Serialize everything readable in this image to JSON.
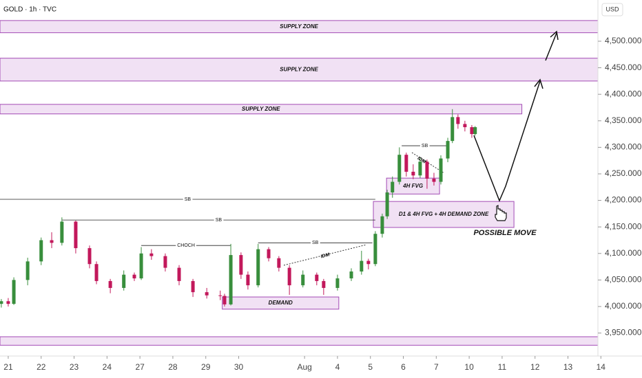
{
  "chart_data": {
    "type": "candlestick",
    "title": "GOLD · 1h · TVC",
    "currency": "USD",
    "up_color": "#388e3c",
    "down_color": "#c2185b",
    "x": [
      -0.21,
      0,
      0.17,
      0.59,
      1.0,
      1.32,
      1.63,
      2.05,
      2.47,
      2.68,
      3.1,
      3.51,
      3.83,
      4.04,
      4.35,
      4.77,
      5.19,
      5.61,
      6.03,
      6.44,
      6.57,
      6.76,
      7.07,
      7.28,
      7.59,
      7.91,
      8.22,
      8.54,
      8.95,
      9.37,
      9.58,
      10.0,
      10.42,
      10.73,
      10.94,
      11.15,
      11.36,
      11.51,
      11.67,
      11.88,
      12.09,
      12.3,
      12.51,
      12.72,
      12.93,
      13.14,
      13.35,
      13.49,
      13.66,
      13.87,
      14.08,
      14.18
    ],
    "open": [
      4005,
      4010,
      4005,
      4050,
      4085,
      4125,
      4120,
      4160,
      4110,
      4080,
      4048,
      4035,
      4060,
      4053,
      4100,
      4095,
      4073,
      4048,
      4027,
      4021,
      4020,
      4004,
      4097,
      4060,
      4040,
      4108,
      4091,
      4073,
      4040,
      4060,
      4048,
      4035,
      4053,
      4066,
      4086,
      4080,
      4137,
      4170,
      4215,
      4235,
      4286,
      4254,
      4247,
      4273,
      4241,
      4235,
      4279,
      4312,
      4357,
      4344,
      4338,
      4325
    ],
    "high": [
      4014,
      4016,
      4055,
      4092,
      4130,
      4140,
      4168,
      4162,
      4115,
      4085,
      4052,
      4068,
      4064,
      4112,
      4108,
      4100,
      4078,
      4052,
      4035,
      4030,
      4024,
      4118,
      4102,
      4066,
      4118,
      4112,
      4095,
      4078,
      4068,
      4064,
      4052,
      4060,
      4072,
      4105,
      4090,
      4142,
      4175,
      4220,
      4245,
      4300,
      4290,
      4268,
      4280,
      4277,
      4252,
      4285,
      4318,
      4372,
      4362,
      4350,
      4342,
      4340
    ],
    "low": [
      3998,
      4000,
      4003,
      4040,
      4078,
      4110,
      4115,
      4100,
      4072,
      4042,
      4025,
      4030,
      4048,
      4050,
      4088,
      4066,
      4040,
      4018,
      4015,
      4012,
      4000,
      4002,
      4052,
      4032,
      4036,
      4085,
      4066,
      4022,
      4036,
      4040,
      4022,
      4030,
      4048,
      4060,
      4070,
      4076,
      4130,
      4165,
      4205,
      4230,
      4245,
      4240,
      4242,
      4222,
      4228,
      4230,
      4272,
      4308,
      4335,
      4330,
      4318,
      4322
    ],
    "close": [
      4010,
      4005,
      4050,
      4085,
      4125,
      4120,
      4160,
      4110,
      4080,
      4048,
      4035,
      4060,
      4053,
      4100,
      4095,
      4073,
      4048,
      4027,
      4021,
      4020,
      4004,
      4097,
      4060,
      4040,
      4108,
      4091,
      4073,
      4040,
      4060,
      4048,
      4035,
      4053,
      4066,
      4086,
      4080,
      4137,
      4170,
      4215,
      4235,
      4286,
      4254,
      4247,
      4273,
      4241,
      4235,
      4279,
      4312,
      4357,
      4344,
      4338,
      4325,
      4338
    ],
    "xlim": [
      -0.25,
      17.91
    ],
    "ylim": [
      3906.7,
      4577.7
    ],
    "xticks": [
      {
        "value": 0,
        "label": "21"
      },
      {
        "value": 1,
        "label": "22"
      },
      {
        "value": 2,
        "label": "23"
      },
      {
        "value": 3,
        "label": "24"
      },
      {
        "value": 4,
        "label": "27"
      },
      {
        "value": 5,
        "label": "28"
      },
      {
        "value": 6,
        "label": "29"
      },
      {
        "value": 7,
        "label": "30"
      },
      {
        "value": 9,
        "label": "Aug"
      },
      {
        "value": 10,
        "label": "4"
      },
      {
        "value": 11,
        "label": "5"
      },
      {
        "value": 12,
        "label": "6"
      },
      {
        "value": 13,
        "label": "7"
      },
      {
        "value": 14,
        "label": "10"
      },
      {
        "value": 15,
        "label": "11"
      },
      {
        "value": 16,
        "label": "12"
      },
      {
        "value": 17,
        "label": "13"
      },
      {
        "value": 18,
        "label": "14"
      }
    ],
    "yticks": [
      {
        "value": 3950,
        "label": "3,950.000"
      },
      {
        "value": 4000,
        "label": "4,000.000"
      },
      {
        "value": 4050,
        "label": "4,050.000"
      },
      {
        "value": 4100,
        "label": "4,100.000"
      },
      {
        "value": 4150,
        "label": "4,150.000"
      },
      {
        "value": 4200,
        "label": "4,200.000"
      },
      {
        "value": 4250,
        "label": "4,250.000"
      },
      {
        "value": 4300,
        "label": "4,300.000"
      },
      {
        "value": 4350,
        "label": "4,350.000"
      },
      {
        "value": 4400,
        "label": "4,400.000"
      },
      {
        "value": 4450,
        "label": "4,450.000"
      },
      {
        "value": 4500,
        "label": "4,500.000"
      }
    ],
    "zones": [
      {
        "label": "SUPPLY ZONE",
        "top": 4539,
        "bottom": 4516
      },
      {
        "label": "SUPPLY ZONE",
        "top": 4468,
        "bottom": 4425
      },
      {
        "label": "SUPPLY ZONE",
        "top": 4381,
        "bottom": 4363,
        "x": [
          -0.25,
          15.6
        ]
      },
      {
        "label": "DEMAND",
        "top": 4018,
        "bottom": 3995,
        "x": [
          6.5,
          10.04
        ]
      },
      {
        "label": "4H FVG",
        "top": 4242,
        "bottom": 4212,
        "x": [
          11.49,
          13.1
        ]
      },
      {
        "label": "D1 & 4H FVG + 4H DEMAND ZONE",
        "top": 4198,
        "bottom": 4149,
        "x": [
          11.09,
          15.36
        ]
      },
      {
        "top": 3943,
        "bottom": 3927
      }
    ],
    "levels": [
      {
        "label": "SB",
        "price": 4202,
        "x": [
          -0.25,
          11.15
        ]
      },
      {
        "label": "SB",
        "price": 4163,
        "x": [
          1.63,
          11.15
        ]
      },
      {
        "label": "CHOCH",
        "price": 4115,
        "x": [
          4.04,
          6.76
        ]
      },
      {
        "label": "SB",
        "price": 4120,
        "x": [
          7.59,
          11.06
        ]
      },
      {
        "label": "SB",
        "price": 4303,
        "x": [
          11.95,
          13.35
        ]
      }
    ],
    "idm_labels": [
      "IDM",
      "IDM"
    ],
    "projection_label": "POSSIBLE MOVE"
  }
}
